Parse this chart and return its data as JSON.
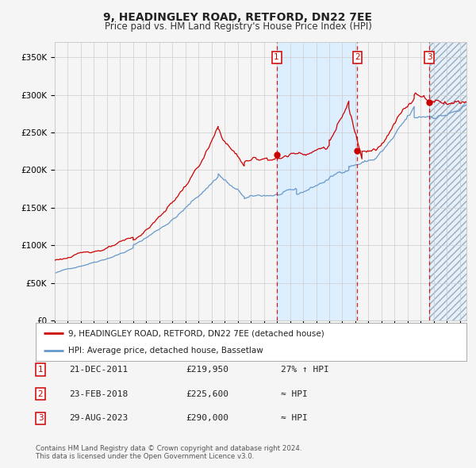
{
  "title": "9, HEADINGLEY ROAD, RETFORD, DN22 7EE",
  "subtitle": "Price paid vs. HM Land Registry's House Price Index (HPI)",
  "red_label": "9, HEADINGLEY ROAD, RETFORD, DN22 7EE (detached house)",
  "blue_label": "HPI: Average price, detached house, Bassetlaw",
  "footer1": "Contains HM Land Registry data © Crown copyright and database right 2024.",
  "footer2": "This data is licensed under the Open Government Licence v3.0.",
  "transactions": [
    {
      "num": 1,
      "date": "21-DEC-2011",
      "price": "£219,950",
      "vs_hpi": "27% ↑ HPI",
      "year": 2011.97
    },
    {
      "num": 2,
      "date": "23-FEB-2018",
      "price": "£225,600",
      "vs_hpi": "≈ HPI",
      "year": 2018.15
    },
    {
      "num": 3,
      "date": "29-AUG-2023",
      "price": "£290,000",
      "vs_hpi": "≈ HPI",
      "year": 2023.65
    }
  ],
  "transaction_prices": [
    219950,
    225600,
    290000
  ],
  "ylim": [
    0,
    370000
  ],
  "xlim_start": 1995.0,
  "xlim_end": 2026.5,
  "shade_start": 2011.97,
  "shade_end": 2018.15,
  "hatch_start": 2023.65,
  "hatch_end": 2026.5,
  "red_color": "#cc0000",
  "blue_color": "#6699cc",
  "dashed_line_color": "#cc0000",
  "shade_color": "#ddeeff",
  "background_color": "#f5f5f5",
  "grid_color": "#cccccc"
}
